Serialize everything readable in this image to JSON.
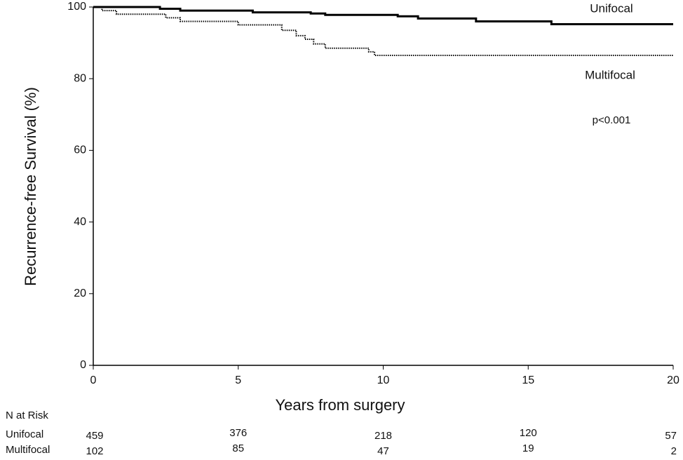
{
  "chart_data": {
    "type": "line",
    "drawstyle": "steps-post",
    "ylabel": "Recurrence-free Survival (%)",
    "xlabel": "Years from surgery",
    "xlim": [
      0,
      20
    ],
    "xticks": [
      0,
      5,
      10,
      15,
      20
    ],
    "ylim": [
      0,
      100
    ],
    "yticks": [
      0,
      20,
      40,
      60,
      80,
      100
    ],
    "grid": false,
    "series": [
      {
        "name": "Unifocal",
        "color": "#000000",
        "linestyle": "solid",
        "x": [
          0,
          2.3,
          3,
          5.5,
          7.5,
          8,
          10.5,
          11.2,
          13.2,
          15.8,
          20
        ],
        "values": [
          100,
          99.5,
          99,
          98.5,
          98.2,
          97.8,
          97.4,
          96.8,
          96,
          95.2,
          95.2
        ]
      },
      {
        "name": "Multifocal",
        "color": "#000000",
        "linestyle": "dotted",
        "x": [
          0,
          0.3,
          0.8,
          2.5,
          3,
          5,
          6.5,
          7,
          7.3,
          7.6,
          8,
          9.5,
          9.7,
          20
        ],
        "values": [
          100,
          99,
          98,
          97,
          96,
          95,
          93.5,
          92,
          91,
          89.7,
          88.5,
          87.5,
          86.5,
          86.5
        ]
      }
    ],
    "annotations": [
      "p<0.001"
    ],
    "risk_table": {
      "title": "N at Risk",
      "x": [
        0,
        5,
        10,
        15,
        20
      ],
      "rows": [
        {
          "name": "Unifocal",
          "values": [
            459,
            376,
            218,
            120,
            57
          ]
        },
        {
          "name": "Multifocal",
          "values": [
            102,
            85,
            47,
            19,
            2
          ]
        }
      ]
    }
  }
}
